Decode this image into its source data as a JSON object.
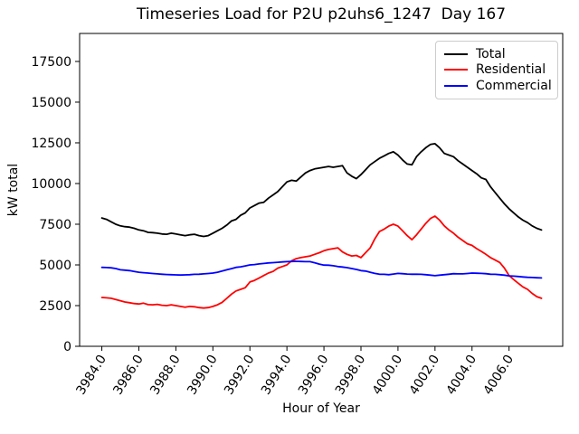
{
  "chart_data": {
    "type": "line",
    "title": "Timeseries Load for P2U p2uhs6_1247  Day 167",
    "xlabel": "Hour of Year",
    "ylabel": "kW total",
    "grid": false,
    "legend_position": "upper right",
    "xlim": [
      3982.8,
      4008.9
    ],
    "ylim": [
      0,
      19220
    ],
    "xtick_values": [
      3984,
      3986,
      3988,
      3990,
      3992,
      3994,
      3996,
      3998,
      4000,
      4002,
      4004,
      4006
    ],
    "xtick_labels": [
      "3984.0",
      "3986.0",
      "3988.0",
      "3990.0",
      "3992.0",
      "3994.0",
      "3996.0",
      "3998.0",
      "4000.0",
      "4002.0",
      "4004.0",
      "4006.0"
    ],
    "ytick_values": [
      0,
      2500,
      5000,
      7500,
      10000,
      12500,
      15000,
      17500
    ],
    "ytick_labels": [
      "0",
      "2500",
      "5000",
      "7500",
      "10000",
      "12500",
      "15000",
      "17500"
    ],
    "x": [
      3984.0,
      3984.25,
      3984.5,
      3984.75,
      3985.0,
      3985.25,
      3985.5,
      3985.75,
      3986.0,
      3986.25,
      3986.5,
      3986.75,
      3987.0,
      3987.25,
      3987.5,
      3987.75,
      3988.0,
      3988.25,
      3988.5,
      3988.75,
      3989.0,
      3989.25,
      3989.5,
      3989.75,
      3990.0,
      3990.25,
      3990.5,
      3990.75,
      3991.0,
      3991.25,
      3991.5,
      3991.75,
      3992.0,
      3992.25,
      3992.5,
      3992.75,
      3993.0,
      3993.25,
      3993.5,
      3993.75,
      3994.0,
      3994.25,
      3994.5,
      3994.75,
      3995.0,
      3995.25,
      3995.5,
      3995.75,
      3996.0,
      3996.25,
      3996.5,
      3996.75,
      3997.0,
      3997.25,
      3997.5,
      3997.75,
      3998.0,
      3998.25,
      3998.5,
      3998.75,
      3999.0,
      3999.25,
      3999.5,
      3999.75,
      4000.0,
      4000.25,
      4000.5,
      4000.75,
      4001.0,
      4001.25,
      4001.5,
      4001.75,
      4002.0,
      4002.25,
      4002.5,
      4002.75,
      4003.0,
      4003.25,
      4003.5,
      4003.75,
      4004.0,
      4004.25,
      4004.5,
      4004.75,
      4005.0,
      4005.25,
      4005.5,
      4005.75,
      4006.0,
      4006.25,
      4006.5,
      4006.75,
      4007.0,
      4007.25,
      4007.5,
      4007.75
    ],
    "series": [
      {
        "name": "Total",
        "color": "#000000",
        "values": [
          7880,
          7800,
          7650,
          7500,
          7400,
          7350,
          7320,
          7250,
          7150,
          7100,
          7000,
          6980,
          6950,
          6900,
          6880,
          6950,
          6900,
          6850,
          6800,
          6850,
          6880,
          6800,
          6750,
          6800,
          6950,
          7100,
          7250,
          7450,
          7700,
          7800,
          8050,
          8200,
          8500,
          8650,
          8800,
          8850,
          9100,
          9300,
          9500,
          9800,
          10100,
          10200,
          10150,
          10400,
          10650,
          10800,
          10900,
          10950,
          11000,
          11050,
          11000,
          11050,
          11100,
          10650,
          10450,
          10300,
          10550,
          10850,
          11150,
          11350,
          11550,
          11700,
          11850,
          11950,
          11750,
          11450,
          11200,
          11150,
          11650,
          11950,
          12200,
          12400,
          12450,
          12200,
          11850,
          11750,
          11650,
          11400,
          11200,
          11000,
          10800,
          10600,
          10350,
          10250,
          9800,
          9450,
          9100,
          8750,
          8450,
          8200,
          7950,
          7750,
          7600,
          7400,
          7250,
          7150
        ]
      },
      {
        "name": "Residential",
        "color": "#ff0000",
        "values": [
          3000,
          2980,
          2950,
          2870,
          2800,
          2720,
          2680,
          2630,
          2600,
          2650,
          2560,
          2550,
          2580,
          2520,
          2500,
          2550,
          2500,
          2450,
          2400,
          2450,
          2430,
          2380,
          2350,
          2380,
          2450,
          2550,
          2700,
          2950,
          3200,
          3400,
          3500,
          3600,
          3950,
          4050,
          4200,
          4350,
          4500,
          4600,
          4800,
          4900,
          5000,
          5250,
          5380,
          5450,
          5500,
          5550,
          5650,
          5750,
          5870,
          5950,
          6000,
          6050,
          5800,
          5650,
          5550,
          5580,
          5450,
          5750,
          6050,
          6600,
          7050,
          7200,
          7380,
          7500,
          7380,
          7100,
          6800,
          6550,
          6850,
          7200,
          7550,
          7850,
          8000,
          7750,
          7400,
          7150,
          6950,
          6700,
          6500,
          6300,
          6200,
          6000,
          5830,
          5650,
          5450,
          5300,
          5150,
          4800,
          4350,
          4100,
          3870,
          3650,
          3500,
          3250,
          3050,
          2950
        ]
      },
      {
        "name": "Commercial",
        "color": "#0000ff",
        "values": [
          4850,
          4840,
          4820,
          4780,
          4700,
          4680,
          4650,
          4600,
          4550,
          4520,
          4500,
          4470,
          4450,
          4430,
          4410,
          4400,
          4390,
          4380,
          4390,
          4400,
          4420,
          4430,
          4450,
          4470,
          4500,
          4550,
          4620,
          4700,
          4770,
          4850,
          4880,
          4940,
          5000,
          5020,
          5060,
          5090,
          5120,
          5140,
          5160,
          5180,
          5200,
          5210,
          5220,
          5210,
          5200,
          5200,
          5130,
          5050,
          4990,
          4980,
          4950,
          4900,
          4870,
          4830,
          4780,
          4720,
          4650,
          4620,
          4550,
          4480,
          4430,
          4420,
          4400,
          4440,
          4480,
          4460,
          4440,
          4430,
          4430,
          4420,
          4400,
          4370,
          4340,
          4370,
          4400,
          4430,
          4460,
          4450,
          4450,
          4470,
          4500,
          4490,
          4480,
          4460,
          4430,
          4420,
          4400,
          4370,
          4330,
          4310,
          4290,
          4260,
          4240,
          4230,
          4210,
          4200
        ]
      }
    ]
  }
}
